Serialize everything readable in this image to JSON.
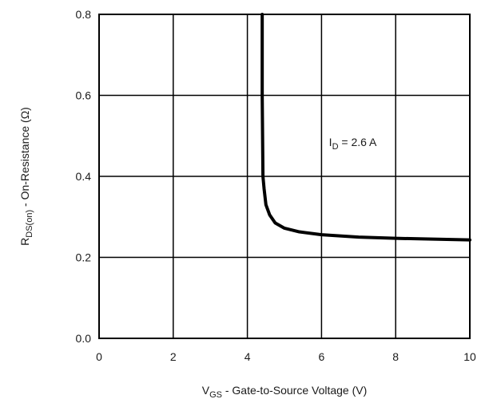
{
  "chart_data": {
    "type": "line",
    "xlabel": {
      "main": "V",
      "sub": "GS",
      "rest": " - Gate-to-Source Voltage (V)"
    },
    "ylabel": {
      "main": "R",
      "sub": "DS(on)",
      "rest": " - On-Resistance (Ω)"
    },
    "xlim": [
      0,
      10
    ],
    "ylim": [
      0,
      0.8
    ],
    "x_ticks": [
      "0",
      "2",
      "4",
      "6",
      "8",
      "10"
    ],
    "y_ticks": [
      "0.0",
      "0.2",
      "0.4",
      "0.6",
      "0.8"
    ],
    "grid": true,
    "annotation": {
      "main": "I",
      "sub": "D",
      "rest": " = 2.6 A",
      "x": 6.2,
      "y": 0.475
    },
    "series": [
      {
        "x": [
          4.4,
          4.4,
          4.42,
          4.45,
          4.5,
          4.6,
          4.75,
          5.0,
          5.4,
          6.0,
          7.0,
          8.0,
          9.0,
          10.0
        ],
        "y": [
          0.8,
          0.6,
          0.4,
          0.37,
          0.33,
          0.305,
          0.285,
          0.272,
          0.263,
          0.256,
          0.25,
          0.247,
          0.245,
          0.243
        ]
      }
    ]
  }
}
